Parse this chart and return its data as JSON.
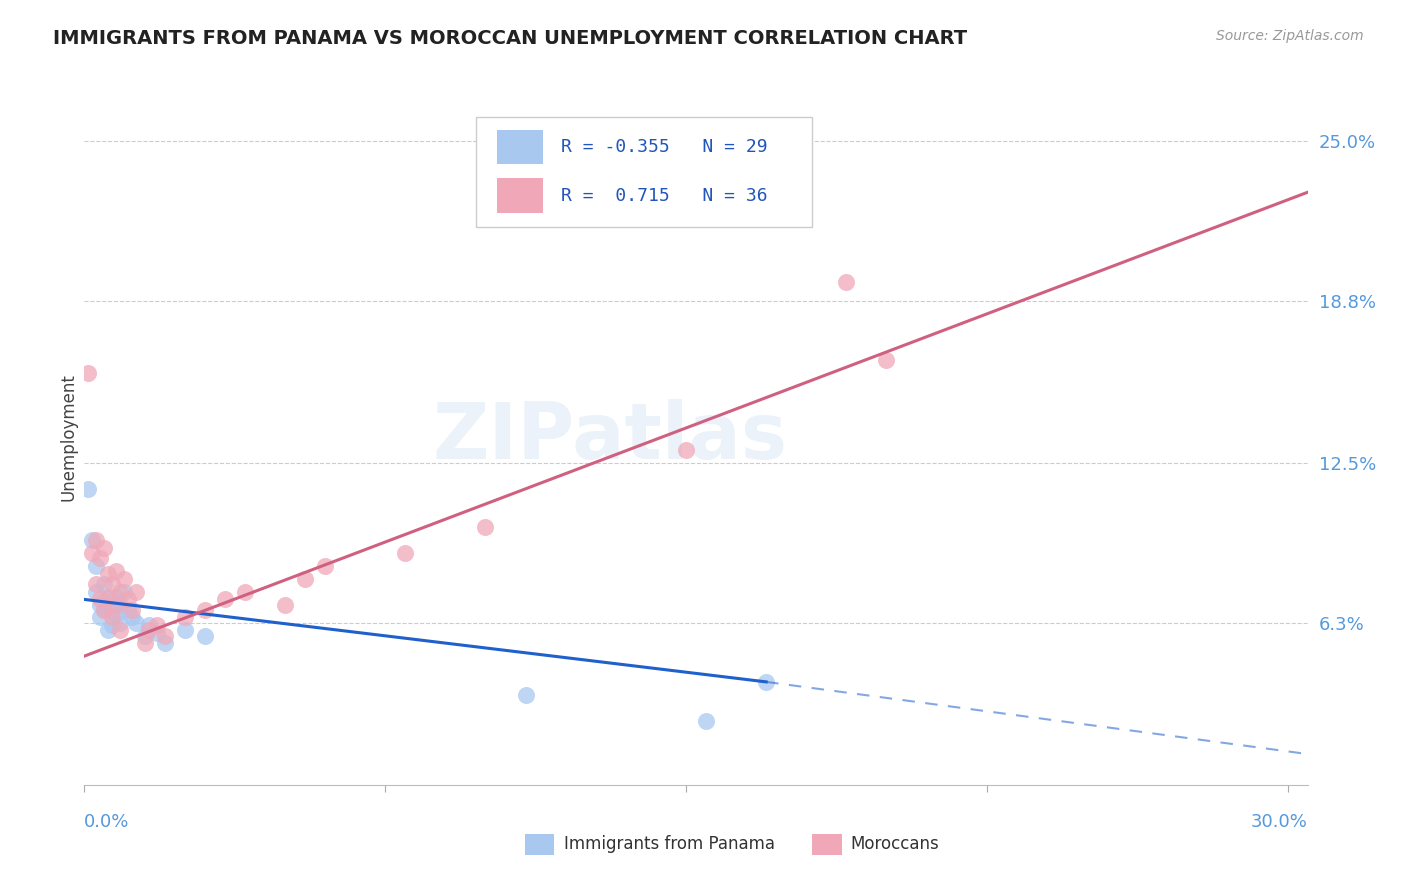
{
  "title": "IMMIGRANTS FROM PANAMA VS MOROCCAN UNEMPLOYMENT CORRELATION CHART",
  "source": "Source: ZipAtlas.com",
  "ylabel": "Unemployment",
  "y_ticks": [
    0.063,
    0.125,
    0.188,
    0.25
  ],
  "y_tick_labels": [
    "6.3%",
    "12.5%",
    "18.8%",
    "25.0%"
  ],
  "xlim": [
    0.0,
    0.305
  ],
  "ylim": [
    0.0,
    0.27
  ],
  "legend_r_panama": "-0.355",
  "legend_n_panama": "29",
  "legend_r_moroccan": "0.715",
  "legend_n_moroccan": "36",
  "blue_color": "#a8c8f0",
  "pink_color": "#f0a8b8",
  "blue_line_color": "#2060cc",
  "pink_line_color": "#d06080",
  "blue_line": [
    [
      0.0,
      0.072
    ],
    [
      0.17,
      0.04
    ]
  ],
  "blue_line_dash": [
    [
      0.17,
      0.04
    ],
    [
      0.305,
      0.012
    ]
  ],
  "pink_line": [
    [
      0.0,
      0.05
    ],
    [
      0.305,
      0.23
    ]
  ],
  "watermark_text": "ZIPatlas",
  "panama_dots": [
    [
      0.001,
      0.115
    ],
    [
      0.002,
      0.095
    ],
    [
      0.003,
      0.085
    ],
    [
      0.003,
      0.075
    ],
    [
      0.004,
      0.07
    ],
    [
      0.004,
      0.065
    ],
    [
      0.005,
      0.078
    ],
    [
      0.005,
      0.068
    ],
    [
      0.006,
      0.072
    ],
    [
      0.006,
      0.06
    ],
    [
      0.007,
      0.068
    ],
    [
      0.007,
      0.062
    ],
    [
      0.008,
      0.073
    ],
    [
      0.008,
      0.066
    ],
    [
      0.009,
      0.07
    ],
    [
      0.009,
      0.063
    ],
    [
      0.01,
      0.075
    ],
    [
      0.011,
      0.068
    ],
    [
      0.012,
      0.065
    ],
    [
      0.013,
      0.063
    ],
    [
      0.015,
      0.058
    ],
    [
      0.016,
      0.062
    ],
    [
      0.018,
      0.059
    ],
    [
      0.02,
      0.055
    ],
    [
      0.025,
      0.06
    ],
    [
      0.03,
      0.058
    ],
    [
      0.11,
      0.035
    ],
    [
      0.17,
      0.04
    ],
    [
      0.155,
      0.025
    ]
  ],
  "moroccan_dots": [
    [
      0.001,
      0.16
    ],
    [
      0.002,
      0.09
    ],
    [
      0.003,
      0.078
    ],
    [
      0.003,
      0.095
    ],
    [
      0.004,
      0.088
    ],
    [
      0.004,
      0.072
    ],
    [
      0.005,
      0.092
    ],
    [
      0.005,
      0.068
    ],
    [
      0.006,
      0.082
    ],
    [
      0.006,
      0.073
    ],
    [
      0.007,
      0.078
    ],
    [
      0.007,
      0.065
    ],
    [
      0.008,
      0.083
    ],
    [
      0.008,
      0.07
    ],
    [
      0.009,
      0.075
    ],
    [
      0.009,
      0.06
    ],
    [
      0.01,
      0.08
    ],
    [
      0.011,
      0.072
    ],
    [
      0.012,
      0.068
    ],
    [
      0.013,
      0.075
    ],
    [
      0.015,
      0.055
    ],
    [
      0.016,
      0.06
    ],
    [
      0.018,
      0.062
    ],
    [
      0.02,
      0.058
    ],
    [
      0.025,
      0.065
    ],
    [
      0.03,
      0.068
    ],
    [
      0.035,
      0.072
    ],
    [
      0.04,
      0.075
    ],
    [
      0.05,
      0.07
    ],
    [
      0.055,
      0.08
    ],
    [
      0.06,
      0.085
    ],
    [
      0.08,
      0.09
    ],
    [
      0.1,
      0.1
    ],
    [
      0.15,
      0.13
    ],
    [
      0.2,
      0.165
    ],
    [
      0.19,
      0.195
    ]
  ]
}
